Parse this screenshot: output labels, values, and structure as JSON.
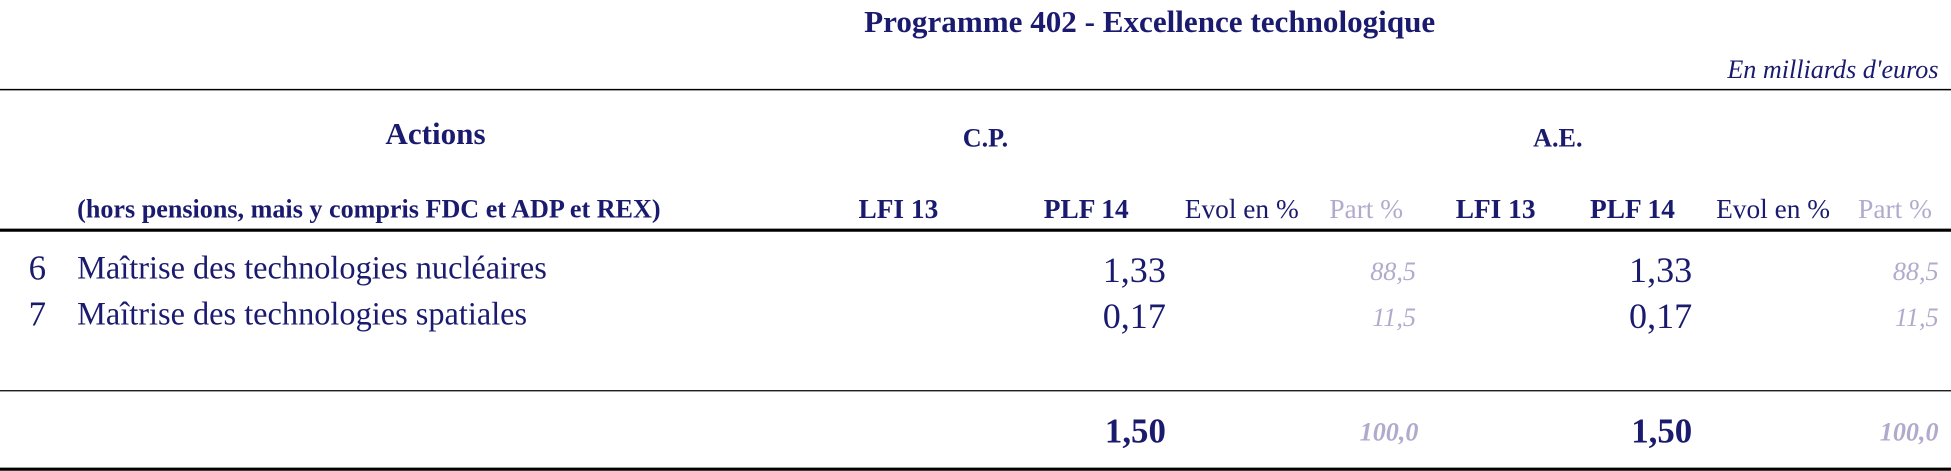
{
  "header": {
    "title": "Programme 402 - Excellence technologique",
    "unit": "En milliards d'euros"
  },
  "table": {
    "columns": {
      "actions": "Actions",
      "actions_note": "(hors pensions, mais y compris FDC et ADP et REX)",
      "cp": "C.P.",
      "ae": "A.E.",
      "sub": [
        "LFI 13",
        "PLF 14",
        "Evol en %",
        "Part %",
        "LFI 13",
        "PLF 14",
        "Evol en %",
        "Part %"
      ]
    },
    "rows": [
      {
        "number": "6",
        "label": "Maîtrise des technologies nucléaires",
        "cp_plf14": "1,33",
        "cp_part": "88,5",
        "ae_plf14": "1,33",
        "ae_part": "88,5"
      },
      {
        "number": "7",
        "label": "Maîtrise des technologies spatiales",
        "cp_plf14": "0,17",
        "cp_part": "11,5",
        "ae_plf14": "0,17",
        "ae_part": "11,5"
      }
    ],
    "total": {
      "cp_plf14": "1,50",
      "cp_part": "100,0",
      "ae_plf14": "1,50",
      "ae_part": "100,0"
    }
  }
}
